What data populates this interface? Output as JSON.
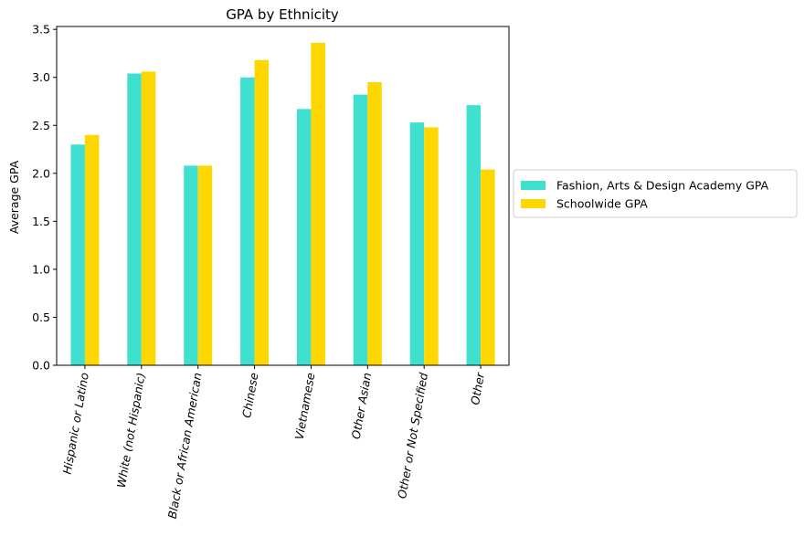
{
  "chart_data": {
    "type": "bar",
    "title": "GPA by Ethnicity",
    "xlabel": "",
    "ylabel": "Average GPA",
    "categories": [
      "Hispanic or Latino",
      "White (not Hispanic)",
      "Black or African American",
      "Chinese",
      "Vietnamese",
      "Other Asian",
      "Other or Not Specified",
      "Other"
    ],
    "series": [
      {
        "name": "Fashion, Arts & Design Academy GPA",
        "color": "#40e0d0",
        "values": [
          2.3,
          3.04,
          2.08,
          3.0,
          2.67,
          2.82,
          2.53,
          2.71
        ]
      },
      {
        "name": "Schoolwide GPA",
        "color": "#ffd700",
        "values": [
          2.4,
          3.06,
          2.08,
          3.18,
          3.36,
          2.95,
          2.48,
          2.04
        ]
      }
    ],
    "ylim": [
      0,
      3.53
    ],
    "yticks": [
      "0.0",
      "0.5",
      "1.0",
      "1.5",
      "2.0",
      "2.5",
      "3.0",
      "3.5"
    ],
    "ytick_values": [
      0,
      0.5,
      1.0,
      1.5,
      2.0,
      2.5,
      3.0,
      3.5
    ],
    "grid": false,
    "legend_position": "outside-right"
  }
}
